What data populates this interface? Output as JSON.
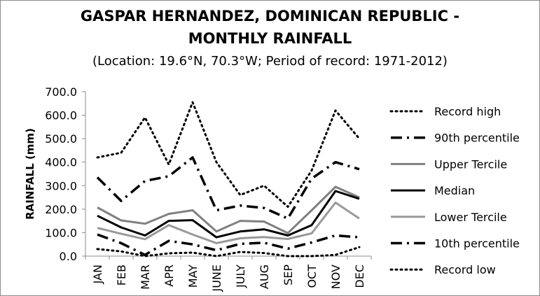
{
  "chart_data": {
    "type": "line",
    "title_line1": "GASPAR HERNANDEZ, DOMINICAN REPUBLIC -",
    "title_line2": "MONTHLY RAINFALL",
    "subtitle": "(Location: 19.6°N, 70.3°W; Period of record: 1971-2012)",
    "xlabel": "",
    "ylabel": "RAINFALL (mm)",
    "ylim": [
      0,
      700
    ],
    "yticks": [
      "0.0",
      "100.0",
      "200.0",
      "300.0",
      "400.0",
      "500.0",
      "600.0",
      "700.0"
    ],
    "categories": [
      "JAN",
      "FEB",
      "MAR",
      "APR",
      "MAY",
      "JUNE",
      "JULY",
      "AUG",
      "SEP",
      "OCT",
      "NOV",
      "DEC"
    ],
    "grid": false,
    "legend_position": "right",
    "series": [
      {
        "name": "Record high",
        "style": "dotted",
        "color": "#000000",
        "values": [
          420,
          440,
          590,
          390,
          655,
          400,
          260,
          300,
          210,
          365,
          620,
          500
        ]
      },
      {
        "name": "90th percentile",
        "style": "dashdot",
        "color": "#000000",
        "values": [
          335,
          235,
          320,
          340,
          420,
          195,
          215,
          205,
          160,
          330,
          400,
          370
        ]
      },
      {
        "name": "Upper Tercile",
        "style": "solid",
        "color": "#808080",
        "values": [
          207,
          152,
          138,
          180,
          195,
          105,
          150,
          147,
          98,
          195,
          295,
          250
        ]
      },
      {
        "name": "Median",
        "style": "solid",
        "color": "#000000",
        "values": [
          172,
          122,
          88,
          150,
          153,
          80,
          105,
          114,
          88,
          132,
          277,
          244
        ]
      },
      {
        "name": "Lower Tercile",
        "style": "solid",
        "color": "#999999",
        "values": [
          120,
          95,
          72,
          132,
          92,
          55,
          76,
          81,
          73,
          97,
          228,
          160
        ]
      },
      {
        "name": "10th percentile",
        "style": "dashdot",
        "color": "#000000",
        "values": [
          92,
          55,
          5,
          65,
          50,
          25,
          52,
          57,
          32,
          58,
          88,
          80
        ]
      },
      {
        "name": "Record low",
        "style": "dotted",
        "color": "#000000",
        "values": [
          30,
          20,
          0,
          12,
          15,
          0,
          18,
          13,
          0,
          0,
          5,
          38
        ]
      }
    ]
  }
}
